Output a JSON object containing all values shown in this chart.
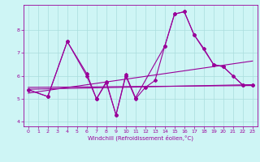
{
  "color": "#990099",
  "bg_color": "#cef5f5",
  "grid_color": "#aadddd",
  "xlabel": "Windchill (Refroidissement éolien,°C)",
  "ylim": [
    3.8,
    9.1
  ],
  "xlim": [
    -0.5,
    23.5
  ],
  "yticks": [
    4,
    5,
    6,
    7,
    8
  ],
  "xticks": [
    0,
    1,
    2,
    3,
    4,
    5,
    6,
    7,
    8,
    9,
    10,
    11,
    12,
    13,
    14,
    15,
    16,
    17,
    18,
    19,
    20,
    21,
    22,
    23
  ],
  "line_main_x": [
    0,
    2,
    4,
    6,
    7,
    8,
    9,
    10,
    11,
    14,
    15,
    16,
    17,
    19,
    20,
    22,
    23
  ],
  "line_main_y": [
    5.4,
    5.1,
    7.5,
    6.0,
    5.0,
    5.7,
    4.3,
    6.05,
    5.05,
    7.3,
    8.7,
    8.8,
    7.8,
    6.5,
    6.4,
    5.6,
    5.6
  ],
  "line_sec_x": [
    0,
    2,
    4,
    6,
    7,
    8,
    9,
    10,
    11,
    12,
    13,
    14,
    15,
    16,
    17,
    18,
    19,
    20,
    21,
    22,
    23
  ],
  "line_sec_y": [
    5.4,
    5.1,
    7.5,
    6.1,
    5.0,
    5.75,
    4.3,
    6.0,
    5.0,
    5.5,
    5.8,
    7.3,
    8.7,
    8.8,
    7.8,
    7.2,
    6.5,
    6.4,
    6.0,
    5.6,
    5.6
  ],
  "trend1_x": [
    0,
    23
  ],
  "trend1_y": [
    5.25,
    6.65
  ],
  "trend2_x": [
    0,
    23
  ],
  "trend2_y": [
    5.5,
    5.58
  ],
  "trend3_x": [
    0,
    23
  ],
  "trend3_y": [
    5.42,
    5.62
  ]
}
